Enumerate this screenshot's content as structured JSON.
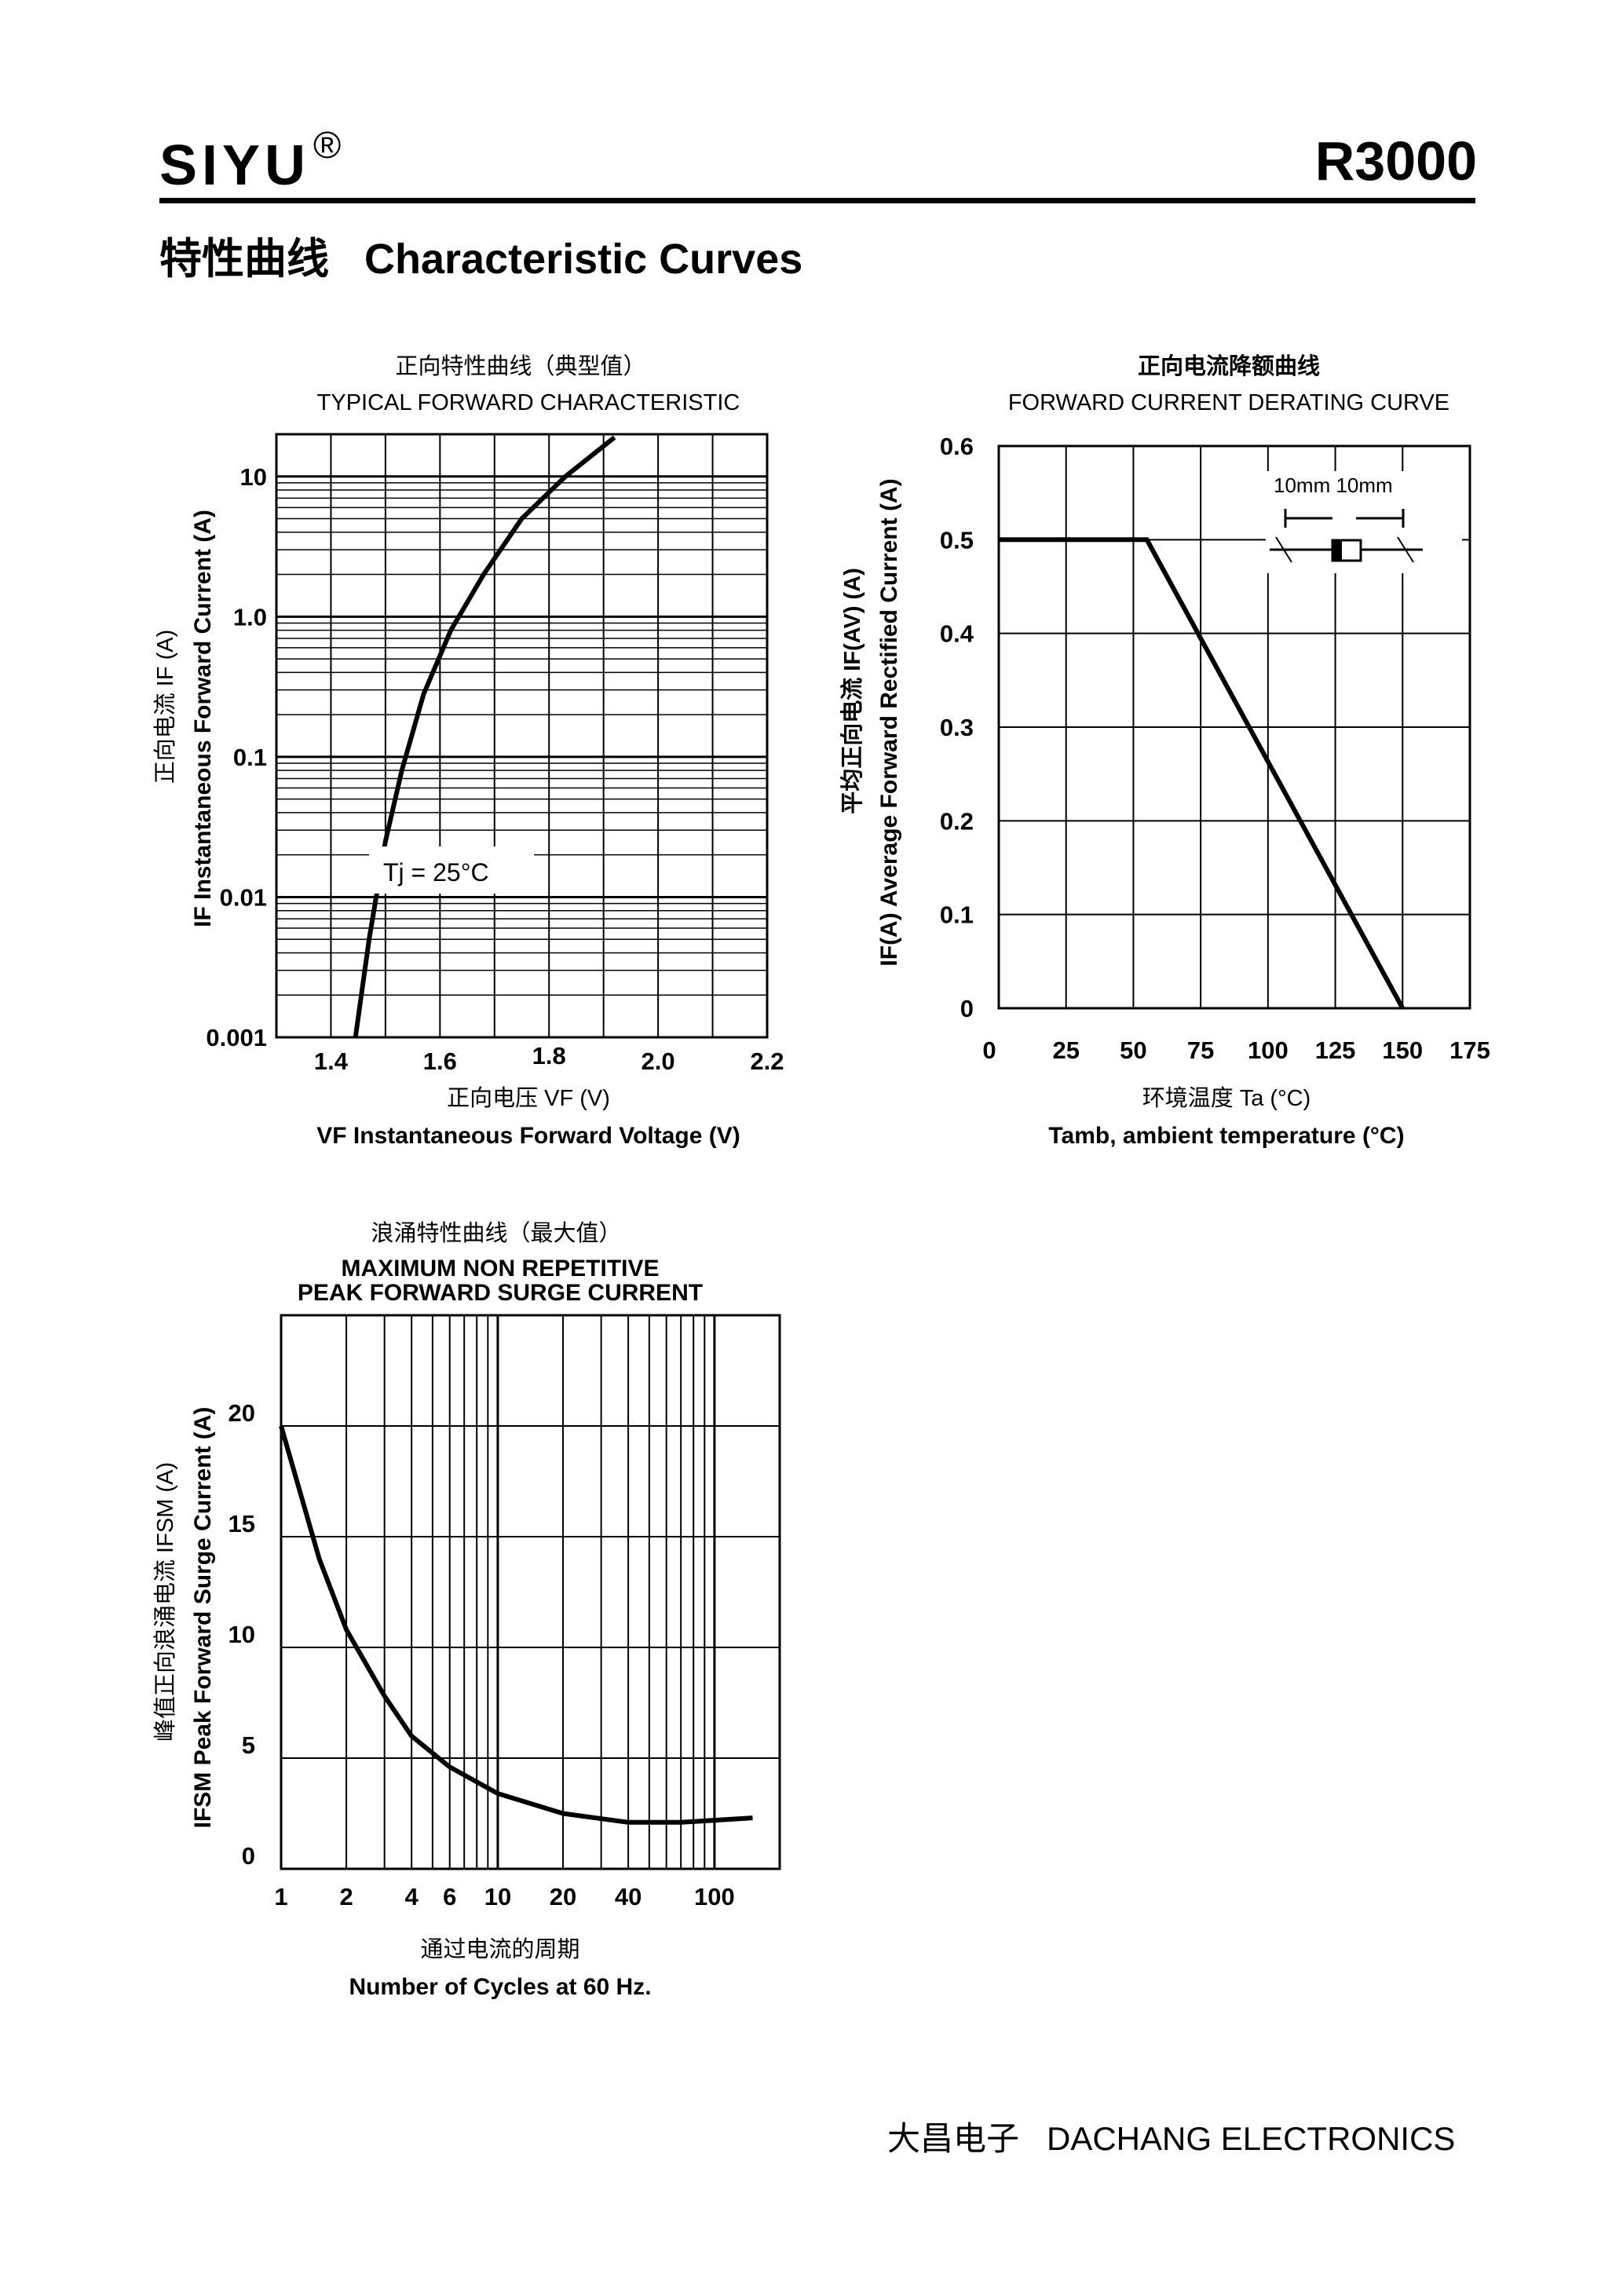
{
  "header": {
    "brand": "SIYU",
    "registered_mark": "®",
    "part_number": "R3000",
    "section_title": "特性曲线   Characteristic Curves"
  },
  "footer": {
    "company": "大昌电子   DACHANG ELECTRONICS"
  },
  "colors": {
    "ink": "#000000",
    "paper": "#ffffff"
  },
  "chart_data": [
    {
      "id": "forward",
      "type": "line",
      "title_cn": "正向特性曲线（典型值）",
      "title": "TYPICAL FORWARD CHARACTERISTIC",
      "xlabel_cn": "正向电压    VF (V)",
      "xlabel": "VF  Instantaneous Forward Voltage (V)",
      "ylabel_cn": "正向电流    IF (A)",
      "ylabel": "IF Instantaneous Forward Current (A)",
      "yscale": "log",
      "xlim": [
        1.3,
        2.2
      ],
      "ylim": [
        0.001,
        20
      ],
      "x_ticks": [
        {
          "v": 1.4,
          "label": "1.4"
        },
        {
          "v": 1.6,
          "label": "1.6"
        },
        {
          "v": 1.8,
          "label": "1.8"
        },
        {
          "v": 2.0,
          "label": "2.0"
        },
        {
          "v": 2.2,
          "label": "2.2"
        }
      ],
      "y_ticks": [
        {
          "v": 0.001,
          "label": "0.001"
        },
        {
          "v": 0.01,
          "label": "0.01"
        },
        {
          "v": 0.1,
          "label": "0.1"
        },
        {
          "v": 1,
          "label": "1.0"
        },
        {
          "v": 10,
          "label": "10"
        }
      ],
      "annotation": "Tj = 25°C",
      "series": [
        {
          "name": "IF",
          "x": [
            1.445,
            1.47,
            1.5,
            1.53,
            1.57,
            1.62,
            1.68,
            1.75,
            1.83,
            1.92
          ],
          "y": [
            0.001,
            0.005,
            0.025,
            0.08,
            0.28,
            0.8,
            2.0,
            5.0,
            10.0,
            19.0
          ]
        }
      ]
    },
    {
      "id": "derating",
      "type": "line",
      "title_cn": "正向电流降额曲线",
      "title": "FORWARD CURRENT DERATING CURVE",
      "xlabel_cn": "环境温度  Ta (°C)",
      "xlabel": "Tamb, ambient temperature (°C)",
      "ylabel_cn": "平均正向电流      IF(AV)  (A)",
      "ylabel": "IF(A)  Average Forward Rectified Current (A)",
      "xlim": [
        0,
        175
      ],
      "ylim": [
        0,
        0.6
      ],
      "x_ticks": [
        {
          "v": 0,
          "label": "0"
        },
        {
          "v": 25,
          "label": "25"
        },
        {
          "v": 50,
          "label": "50"
        },
        {
          "v": 75,
          "label": "75"
        },
        {
          "v": 100,
          "label": "100"
        },
        {
          "v": 125,
          "label": "125"
        },
        {
          "v": 150,
          "label": "150"
        },
        {
          "v": 175,
          "label": "175"
        }
      ],
      "y_ticks": [
        {
          "v": 0,
          "label": "0"
        },
        {
          "v": 0.1,
          "label": "0.1"
        },
        {
          "v": 0.2,
          "label": "0.2"
        },
        {
          "v": 0.3,
          "label": "0.3"
        },
        {
          "v": 0.4,
          "label": "0.4"
        },
        {
          "v": 0.5,
          "label": "0.5"
        },
        {
          "v": 0.6,
          "label": "0.6"
        }
      ],
      "inset_label": "10mm  10mm",
      "series": [
        {
          "name": "IF(AV)",
          "x": [
            0,
            55,
            150
          ],
          "y": [
            0.5,
            0.5,
            0
          ]
        }
      ]
    },
    {
      "id": "surge",
      "type": "line",
      "title_cn": "浪涌特性曲线（最大值）",
      "title_line1": "MAXIMUM NON REPETITIVE",
      "title_line2": "PEAK FORWARD SURGE CURRENT",
      "xlabel_cn": "通过电流的周期",
      "xlabel": "Number  of  Cycles at 60 Hz.",
      "ylabel_cn": "峰值正向浪涌电流  IFSM (A)",
      "ylabel": "IFSM  Peak Forward Surge Current (A)",
      "xscale": "log",
      "xlim": [
        1,
        200
      ],
      "ylim": [
        0,
        25
      ],
      "x_ticks": [
        {
          "v": 1,
          "label": "1"
        },
        {
          "v": 2,
          "label": "2"
        },
        {
          "v": 4,
          "label": "4"
        },
        {
          "v": 6,
          "label": "6"
        },
        {
          "v": 10,
          "label": "10"
        },
        {
          "v": 20,
          "label": "20"
        },
        {
          "v": 40,
          "label": "40"
        },
        {
          "v": 100,
          "label": "100"
        }
      ],
      "y_ticks": [
        {
          "v": 0,
          "label": "0"
        },
        {
          "v": 5,
          "label": "5"
        },
        {
          "v": 10,
          "label": "10"
        },
        {
          "v": 15,
          "label": "15"
        },
        {
          "v": 20,
          "label": "20"
        }
      ],
      "series": [
        {
          "name": "IFSM",
          "x": [
            1,
            1.5,
            2,
            3,
            4,
            6,
            10,
            20,
            40,
            70,
            150
          ],
          "y": [
            20,
            14,
            10.8,
            7.8,
            6.0,
            4.6,
            3.4,
            2.5,
            2.1,
            2.1,
            2.3
          ]
        }
      ]
    }
  ]
}
